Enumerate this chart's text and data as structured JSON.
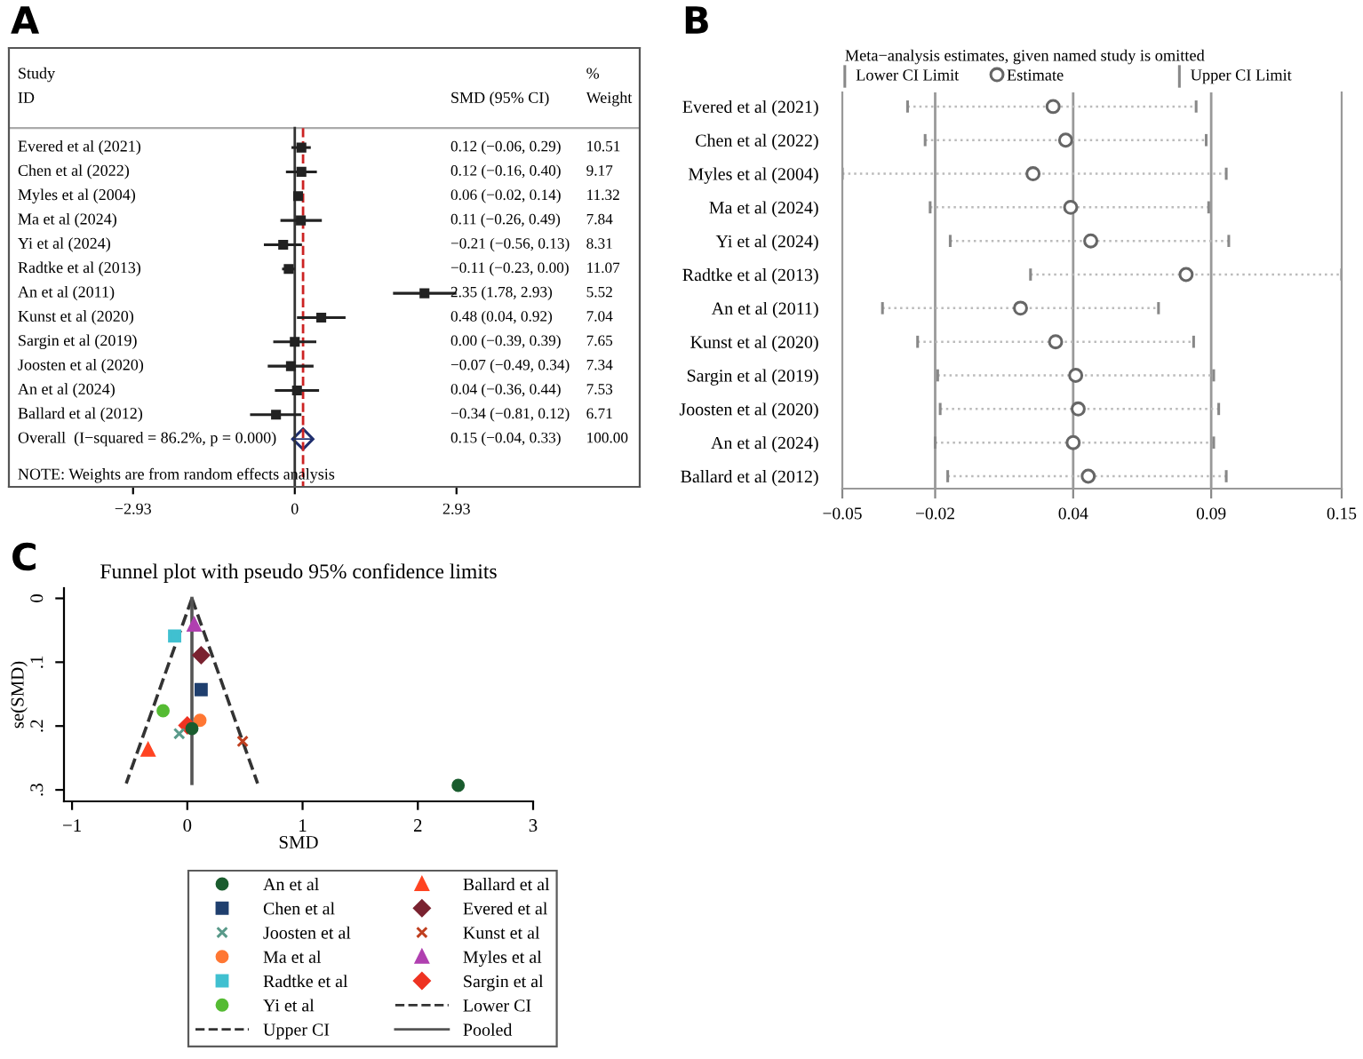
{
  "chart_data": [
    {
      "type": "scatter",
      "orientation": "horizontal",
      "categories": [
        "Evered et al (2021)",
        "Chen et al (2022)",
        "Myles et al (2004)",
        "Ma et al (2024)",
        "Yi et al (2024)",
        "Radtke et al (2013)",
        "An et al (2011)",
        "Kunst et al (2020)",
        "Sargin et al (2019)",
        "Joosten et al (2020)",
        "An et al (2024)",
        "Ballard et al (2012)",
        "Overall  (I−squared = 86.2%, p = 0.000)"
      ],
      "y2_categories": [
        "10.51",
        "9.17",
        "11.32",
        "7.84",
        "8.31",
        "11.07",
        "5.52",
        "7.04",
        "7.65",
        "7.34",
        "7.53",
        "6.71",
        "100.00"
      ],
      "series": [
        {
          "color": "#222222",
          "marker": "square",
          "values": [
            0.12,
            0.12,
            0.06,
            0.11,
            -0.21,
            -0.11,
            2.35,
            0.48,
            0.0,
            -0.07,
            0.04,
            -0.34,
            null
          ],
          "errors": [
            [
              -0.06,
              0.29
            ],
            [
              -0.16,
              0.4
            ],
            [
              -0.02,
              0.14
            ],
            [
              -0.26,
              0.49
            ],
            [
              -0.56,
              0.13
            ],
            [
              -0.23,
              0.0
            ],
            [
              1.78,
              2.93
            ],
            [
              0.04,
              0.92
            ],
            [
              -0.39,
              0.39
            ],
            [
              -0.49,
              0.34
            ],
            [
              -0.36,
              0.44
            ],
            [
              -0.81,
              0.12
            ],
            null
          ]
        },
        {
          "color": "#1f2f6e",
          "marker": "diamond",
          "values": [
            null,
            null,
            null,
            null,
            null,
            null,
            null,
            null,
            null,
            null,
            null,
            null,
            0.15
          ],
          "errors": [
            null,
            null,
            null,
            null,
            null,
            null,
            null,
            null,
            null,
            null,
            null,
            null,
            [
              -0.04,
              0.33
            ]
          ]
        }
      ],
      "xlim": [
        -5.18,
        6.25
      ],
      "xticks": [
        {
          "value": -2.93,
          "label": "−2.93"
        },
        0,
        2.93
      ],
      "ref_lines": [
        {
          "axis": "x",
          "value": 0,
          "color": "#333333",
          "line_style": "solid"
        },
        {
          "axis": "x",
          "value": 0.15,
          "color": "#cc2222",
          "line_style": "dashed"
        }
      ],
      "annotations": [
        "A",
        "Study",
        "ID",
        "SMD (95% CI)",
        "%",
        "Weight",
        "NOTE: Weights are from random effects analysis",
        "0.12 (−0.06, 0.29)",
        "0.12 (−0.16, 0.40)",
        "0.06 (−0.02, 0.14)",
        "0.11 (−0.26, 0.49)",
        "−0.21 (−0.56, 0.13)",
        "−0.11 (−0.23, 0.00)",
        "2.35 (1.78, 2.93)",
        "0.48 (0.04, 0.92)",
        "0.00 (−0.39, 0.39)",
        "−0.07 (−0.49, 0.34)",
        "0.04 (−0.36, 0.44)",
        "−0.34 (−0.81, 0.12)",
        "0.15 (−0.04, 0.33)"
      ]
    },
    {
      "type": "scatter",
      "orientation": "horizontal",
      "title": "Meta−analysis estimates, given named study is omitted",
      "categories": [
        "Evered et al (2021)",
        "Chen et al (2022)",
        "Myles et al (2004)",
        "Ma et al (2024)",
        "Yi et al (2024)",
        "Radtke et al (2013)",
        "An et al (2011)",
        "Kunst et al (2020)",
        "Sargin et al (2019)",
        "Joosten et al (2020)",
        "An et al (2024)",
        "Ballard et al (2012)"
      ],
      "series": [
        {
          "name": "Estimate",
          "color": "#666666",
          "marker": "circle",
          "values": [
            0.03,
            0.035,
            0.022,
            0.037,
            0.045,
            0.083,
            0.017,
            0.031,
            0.039,
            0.04,
            0.038,
            0.044
          ],
          "errors": [
            [
              -0.028,
              0.087
            ],
            [
              -0.021,
              0.091
            ],
            [
              -0.054,
              0.099
            ],
            [
              -0.019,
              0.092
            ],
            [
              -0.011,
              0.1
            ],
            [
              0.021,
              0.145
            ],
            [
              -0.038,
              0.072
            ],
            [
              -0.024,
              0.086
            ],
            [
              -0.016,
              0.094
            ],
            [
              -0.015,
              0.096
            ],
            [
              -0.017,
              0.094
            ],
            [
              -0.012,
              0.099
            ]
          ]
        }
      ],
      "xlim": [
        -0.054,
        0.145
      ],
      "xticks": [
        {
          "value": -0.054,
          "label": "−0.05"
        },
        {
          "value": -0.017,
          "label": "−0.02"
        },
        {
          "value": 0.038,
          "label": "0.04"
        },
        {
          "value": 0.093,
          "label": "0.09"
        },
        {
          "value": 0.145,
          "label": "0.15"
        }
      ],
      "ref_lines": [
        {
          "axis": "x",
          "value": -0.017,
          "color": "#999999"
        },
        {
          "axis": "x",
          "value": 0.038,
          "color": "#999999"
        },
        {
          "axis": "x",
          "value": 0.093,
          "color": "#999999"
        }
      ],
      "legend": "top",
      "annotations": [
        "B",
        "Lower CI Limit",
        "Upper CI Limit"
      ]
    },
    {
      "type": "scatter",
      "title": "Funnel plot with pseudo 95% confidence limits",
      "xlabel": "SMD",
      "ylabel": "se(SMD)",
      "series": [
        {
          "name": "An et al",
          "color": "#1a5c2e",
          "marker": "circle",
          "x": [
            2.35,
            0.04
          ],
          "values": [
            0.293,
            0.204
          ]
        },
        {
          "name": "Ballard et al",
          "color": "#ff4422",
          "marker": "triangle",
          "x": [
            -0.34
          ],
          "values": [
            0.237
          ]
        },
        {
          "name": "Chen et al",
          "color": "#1f3f6e",
          "marker": "square",
          "x": [
            0.12
          ],
          "values": [
            0.143
          ]
        },
        {
          "name": "Evered et al",
          "color": "#7a2230",
          "marker": "diamond",
          "x": [
            0.12
          ],
          "values": [
            0.089
          ]
        },
        {
          "name": "Joosten et al",
          "color": "#5a9a8a",
          "marker": "cross",
          "x": [
            -0.07
          ],
          "values": [
            0.212
          ]
        },
        {
          "name": "Kunst et al",
          "color": "#c04020",
          "marker": "cross",
          "x": [
            0.48
          ],
          "values": [
            0.224
          ]
        },
        {
          "name": "Ma et al",
          "color": "#ff7733",
          "marker": "circle",
          "x": [
            0.11
          ],
          "values": [
            0.191
          ]
        },
        {
          "name": "Myles et al",
          "color": "#b040b0",
          "marker": "triangle",
          "x": [
            0.06
          ],
          "values": [
            0.041
          ]
        },
        {
          "name": "Radtke et al",
          "color": "#40c0d0",
          "marker": "square",
          "x": [
            -0.11
          ],
          "values": [
            0.059
          ]
        },
        {
          "name": "Sargin et al",
          "color": "#ee3322",
          "marker": "diamond",
          "x": [
            0.0
          ],
          "values": [
            0.199
          ]
        },
        {
          "name": "Yi et al",
          "color": "#55bb33",
          "marker": "circle",
          "x": [
            -0.21
          ],
          "values": [
            0.176
          ]
        },
        {
          "name": "Lower CI",
          "type": "line",
          "color": "#333333",
          "line_style": "dashed",
          "x": [
            0.04,
            -0.53
          ],
          "values": [
            0,
            0.29
          ]
        },
        {
          "name": "Upper CI",
          "type": "line",
          "color": "#333333",
          "line_style": "dashed",
          "x": [
            0.04,
            0.61
          ],
          "values": [
            0,
            0.29
          ]
        },
        {
          "name": "Pooled",
          "type": "line",
          "color": "#555555",
          "line_style": "solid",
          "x": [
            0.04,
            0.04
          ],
          "values": [
            0,
            0.29
          ]
        }
      ],
      "xlim": [
        -1.07,
        3
      ],
      "xticks": [
        {
          "value": -1,
          "label": "−1"
        },
        0,
        1,
        2,
        3
      ],
      "ylim": [
        0.318,
        -0.016
      ],
      "yticks": [
        0,
        {
          "value": 0.1,
          "label": ".1"
        },
        {
          "value": 0.2,
          "label": ".2"
        },
        {
          "value": 0.3,
          "label": ".3"
        }
      ],
      "legend": "bottom",
      "annotations": [
        "C"
      ]
    }
  ]
}
